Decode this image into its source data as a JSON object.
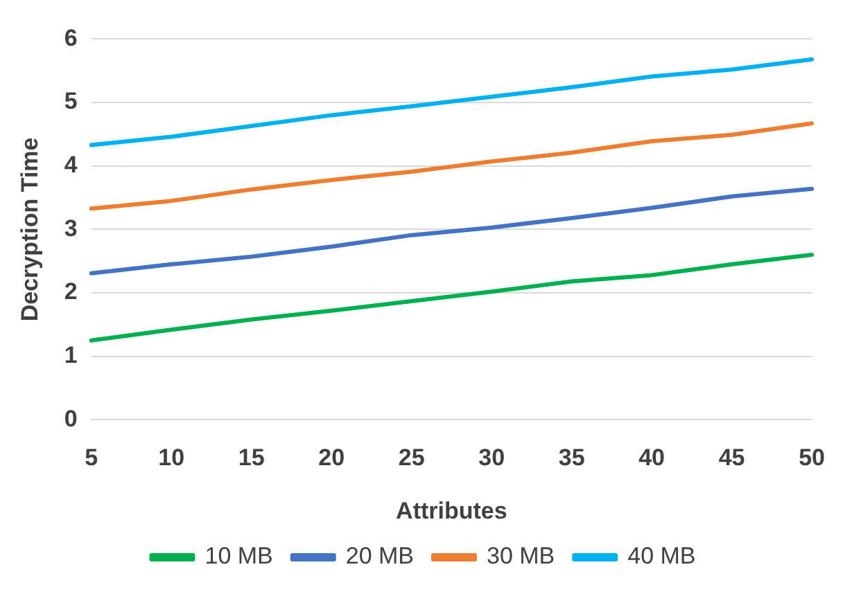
{
  "chart_data": {
    "type": "line",
    "xlabel": "Attributes",
    "ylabel": "Decryption Time",
    "categories": [
      "5",
      "10",
      "15",
      "20",
      "25",
      "30",
      "35",
      "40",
      "45",
      "50"
    ],
    "series": [
      {
        "name": "10 MB",
        "color": "#00b050",
        "values": [
          1.25,
          1.42,
          1.58,
          1.72,
          1.87,
          2.02,
          2.18,
          2.28,
          2.45,
          2.6
        ]
      },
      {
        "name": "20 MB",
        "color": "#4472c4",
        "values": [
          2.31,
          2.45,
          2.57,
          2.73,
          2.91,
          3.03,
          3.18,
          3.34,
          3.52,
          3.64
        ]
      },
      {
        "name": "30 MB",
        "color": "#ed7d31",
        "values": [
          3.33,
          3.45,
          3.63,
          3.78,
          3.91,
          4.07,
          4.21,
          4.39,
          4.49,
          4.67
        ]
      },
      {
        "name": "40 MB",
        "color": "#00b0f0",
        "values": [
          4.33,
          4.46,
          4.63,
          4.8,
          4.94,
          5.09,
          5.24,
          5.41,
          5.52,
          5.68
        ]
      }
    ],
    "ylim": [
      0,
      6
    ],
    "yticks": [
      0,
      1,
      2,
      3,
      4,
      5,
      6
    ],
    "grid": "y",
    "legend": "bottom"
  }
}
